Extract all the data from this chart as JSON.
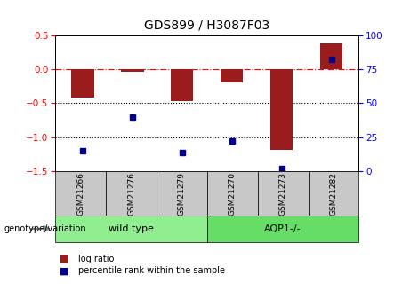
{
  "title": "GDS899 / H3087F03",
  "samples": [
    "GSM21266",
    "GSM21276",
    "GSM21279",
    "GSM21270",
    "GSM21273",
    "GSM21282"
  ],
  "log_ratios": [
    -0.42,
    -0.04,
    -0.47,
    -0.2,
    -1.18,
    0.38
  ],
  "percentile_ranks": [
    15,
    40,
    14,
    22,
    2,
    82
  ],
  "groups": [
    {
      "label": "wild type",
      "indices": [
        0,
        1,
        2
      ],
      "color": "#90EE90"
    },
    {
      "label": "AQP1-/-",
      "indices": [
        3,
        4,
        5
      ],
      "color": "#66DD66"
    }
  ],
  "bar_color": "#9B1C1C",
  "dot_color": "#00008B",
  "ylim_left": [
    -1.5,
    0.5
  ],
  "ylim_right": [
    0,
    100
  ],
  "yticks_left": [
    0.5,
    0,
    -0.5,
    -1.0,
    -1.5
  ],
  "yticks_right": [
    100,
    75,
    50,
    25,
    0
  ],
  "hlines": [
    0,
    -0.5,
    -1.0
  ],
  "hline_styles": [
    "dashdot",
    "dotted",
    "dotted"
  ],
  "hline_colors": [
    "red",
    "black",
    "black"
  ],
  "legend_items": [
    {
      "label": "log ratio",
      "color": "#9B1C1C"
    },
    {
      "label": "percentile rank within the sample",
      "color": "#00008B"
    }
  ],
  "genotype_label": "genotype/variation",
  "sample_box_color": "#C8C8C8",
  "title_fontsize": 10,
  "tick_fontsize": 7.5,
  "sample_fontsize": 6.5,
  "group_fontsize": 8,
  "legend_fontsize": 7,
  "genotype_fontsize": 7
}
